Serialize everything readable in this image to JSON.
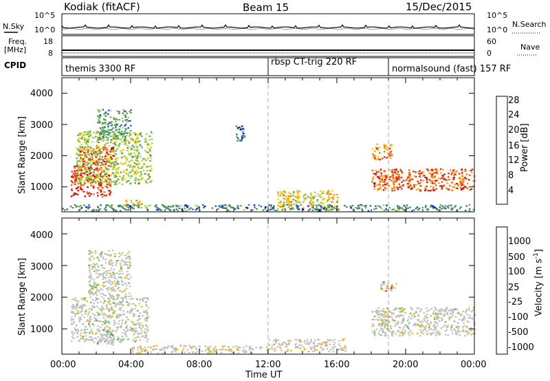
{
  "header": {
    "station": "Kodiak (fitACF)",
    "beam": "Beam 15",
    "date": "15/Dec/2015"
  },
  "summary_panels": {
    "nsky_label": "N.Sky",
    "nsearch_label": "N.Search",
    "noise_ticks_left": [
      "10^5",
      "10^0"
    ],
    "noise_ticks_right": [
      "10^5",
      "10^0"
    ],
    "freq_label_top": "Freq.",
    "freq_label_bottom": "[MHz]",
    "freq_ticks": [
      "18",
      "8"
    ],
    "nave_label": "Nave",
    "nave_ticks": [
      "60",
      "0"
    ],
    "cpid_label": "CPID"
  },
  "cpid_segments": [
    {
      "label": "themis 3300 RF",
      "start_hour": 0
    },
    {
      "label": "rbsp CT-trig 220 RF",
      "start_hour": 12
    },
    {
      "label": "normalsound (fast) 157 RF",
      "start_hour": 19
    }
  ],
  "colors": {
    "power_scale": [
      "#0000ff",
      "#2e5fb0",
      "#3f8a55",
      "#55b24a",
      "#9bd34b",
      "#f5d000",
      "#ffa000",
      "#ff6a00",
      "#ff2000",
      "#e00000"
    ],
    "velocity_scale": [
      "#2040b0",
      "#2f6fa0",
      "#3b8a50",
      "#66c04a",
      "#c0c0c0",
      "#c0c0c0",
      "#f5c000",
      "#ffa000",
      "#ff7000",
      "#ff0000"
    ],
    "echo_gray": "#c0c0c0"
  },
  "chart_data": [
    {
      "type": "heatmap",
      "name": "power",
      "ylabel": "Slant Range [km]",
      "xlim_hours": [
        0,
        24
      ],
      "ylim": [
        200,
        4500
      ],
      "yticks": [
        "1000",
        "2000",
        "3000",
        "4000"
      ],
      "colorbar_label": "Power [dB]",
      "colorbar_ticks": [
        "4",
        "8",
        "12",
        "16",
        "20",
        "24",
        "28"
      ],
      "echo_regions": [
        {
          "t0": 0.5,
          "t1": 2.8,
          "r0": 700,
          "r1": 1700,
          "level": 0.9
        },
        {
          "t0": 1.0,
          "t1": 3.0,
          "r0": 1700,
          "r1": 2300,
          "level": 0.85
        },
        {
          "t0": 0.8,
          "t1": 5.2,
          "r0": 1100,
          "r1": 2800,
          "level": 0.45
        },
        {
          "t0": 2.0,
          "t1": 4.0,
          "r0": 2500,
          "r1": 3500,
          "level": 0.3
        },
        {
          "t0": 3.5,
          "t1": 4.6,
          "r0": 350,
          "r1": 600,
          "level": 0.55
        },
        {
          "t0": 10.1,
          "t1": 10.6,
          "r0": 2400,
          "r1": 3000,
          "level": 0.15
        },
        {
          "t0": 12.5,
          "t1": 16.0,
          "r0": 300,
          "r1": 900,
          "level": 0.55
        },
        {
          "t0": 18.0,
          "t1": 24.0,
          "r0": 900,
          "r1": 1600,
          "level": 0.8
        },
        {
          "t0": 18.0,
          "t1": 19.2,
          "r0": 1900,
          "r1": 2400,
          "level": 0.7
        },
        {
          "t0": 0.0,
          "t1": 24.0,
          "r0": 250,
          "r1": 450,
          "level": 0.25
        }
      ]
    },
    {
      "type": "heatmap",
      "name": "velocity",
      "ylabel": "Slant Range [km]",
      "xlabel": "Time UT",
      "xlim_hours": [
        0,
        24
      ],
      "ylim": [
        200,
        4500
      ],
      "yticks": [
        "1000",
        "2000",
        "3000",
        "4000"
      ],
      "xticks": [
        "00:00",
        "04:00",
        "08:00",
        "12:00",
        "16:00",
        "20:00",
        "00:00"
      ],
      "colorbar_label": "Velocity [m s",
      "colorbar_label_sup": "-1",
      "colorbar_ticks": [
        "1000",
        "500",
        "100",
        "25",
        "-25",
        "-100",
        "-500",
        "-1000"
      ],
      "echo_regions": [
        {
          "t0": 0.5,
          "t1": 5.0,
          "r0": 600,
          "r1": 2000,
          "level": 0.5
        },
        {
          "t0": 1.5,
          "t1": 4.0,
          "r0": 2000,
          "r1": 3500,
          "level": 0.5
        },
        {
          "t0": 2.0,
          "t1": 3.0,
          "r0": 500,
          "r1": 1000,
          "level": 0.35
        },
        {
          "t0": 4.0,
          "t1": 12.0,
          "r0": 250,
          "r1": 500,
          "level": 0.6
        },
        {
          "t0": 12.0,
          "t1": 16.5,
          "r0": 300,
          "r1": 700,
          "level": 0.6
        },
        {
          "t0": 18.0,
          "t1": 24.0,
          "r0": 800,
          "r1": 1700,
          "level": 0.5
        },
        {
          "t0": 18.3,
          "t1": 19.0,
          "r0": 1100,
          "r1": 1600,
          "level": 0.65
        },
        {
          "t0": 18.5,
          "t1": 19.5,
          "r0": 2200,
          "r1": 2500,
          "level": 0.8
        }
      ]
    }
  ]
}
